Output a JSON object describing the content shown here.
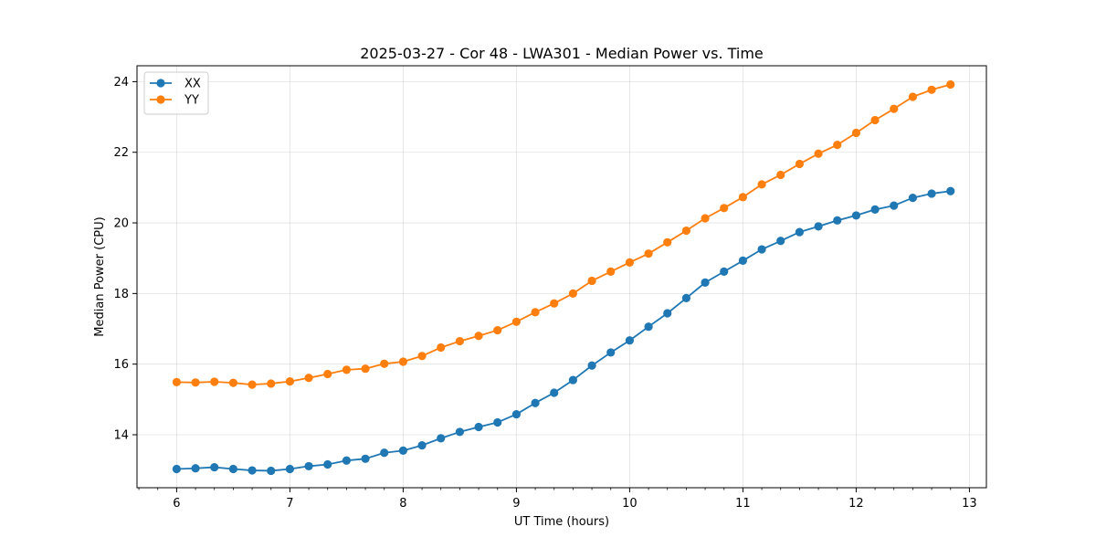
{
  "chart_data": {
    "type": "line",
    "title": "2025-03-27 - Cor 48 - LWA301 - Median Power vs. Time",
    "xlabel": "UT Time (hours)",
    "ylabel": "Median Power (CPU)",
    "xlim": [
      5.65,
      13.15
    ],
    "ylim": [
      12.5,
      24.45
    ],
    "xticks": [
      6,
      7,
      8,
      9,
      10,
      11,
      12,
      13
    ],
    "yticks": [
      14,
      16,
      18,
      20,
      22,
      24
    ],
    "grid": true,
    "legend_position": "top-left",
    "x": [
      6.0,
      6.1667,
      6.3333,
      6.5,
      6.6667,
      6.8333,
      7.0,
      7.1667,
      7.3333,
      7.5,
      7.6667,
      7.8333,
      8.0,
      8.1667,
      8.3333,
      8.5,
      8.6667,
      8.8333,
      9.0,
      9.1667,
      9.3333,
      9.5,
      9.6667,
      9.8333,
      10.0,
      10.1667,
      10.3333,
      10.5,
      10.6667,
      10.8333,
      11.0,
      11.1667,
      11.3333,
      11.5,
      11.6667,
      11.8333,
      12.0,
      12.1667,
      12.3333,
      12.5,
      12.6667,
      12.8333
    ],
    "series": [
      {
        "name": "XX",
        "color": "#1f77b4",
        "values": [
          13.03,
          13.05,
          13.08,
          13.03,
          12.99,
          12.98,
          13.03,
          13.11,
          13.16,
          13.27,
          13.32,
          13.49,
          13.55,
          13.7,
          13.9,
          14.08,
          14.22,
          14.35,
          14.58,
          14.9,
          15.19,
          15.55,
          15.96,
          16.33,
          16.67,
          17.06,
          17.44,
          17.87,
          18.31,
          18.62,
          18.93,
          19.25,
          19.49,
          19.74,
          19.9,
          20.07,
          20.21,
          20.38,
          20.49,
          20.71,
          20.83,
          20.9
        ]
      },
      {
        "name": "YY",
        "color": "#ff7f0e",
        "values": [
          15.49,
          15.48,
          15.5,
          15.47,
          15.42,
          15.45,
          15.51,
          15.61,
          15.72,
          15.84,
          15.87,
          16.01,
          16.07,
          16.23,
          16.47,
          16.65,
          16.8,
          16.96,
          17.2,
          17.47,
          17.72,
          18.0,
          18.36,
          18.62,
          18.88,
          19.13,
          19.45,
          19.78,
          20.13,
          20.42,
          20.73,
          21.09,
          21.36,
          21.67,
          21.96,
          22.21,
          22.55,
          22.91,
          23.23,
          23.57,
          23.77,
          23.92
        ]
      }
    ]
  }
}
